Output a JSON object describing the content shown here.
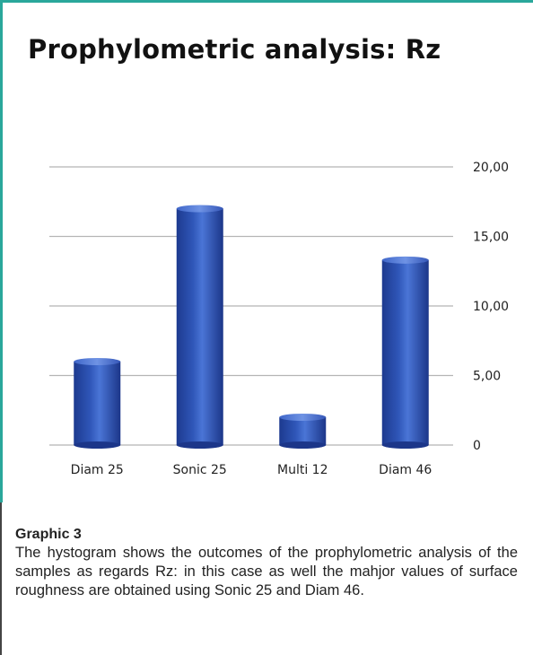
{
  "chart_data": {
    "type": "bar",
    "title": "Prophylometric analysis: Rz",
    "categories": [
      "Diam 25",
      "Sonic 25",
      "Multi 12",
      "Diam 46"
    ],
    "values": [
      6.0,
      17.0,
      2.0,
      13.3
    ],
    "ylim": [
      0,
      20
    ],
    "yticks": [
      "0",
      "5,00",
      "10,00",
      "15,00",
      "20,00"
    ],
    "ytick_values": [
      0,
      5,
      10,
      15,
      20
    ],
    "y_axis_side": "right",
    "grid": true,
    "legend": "none",
    "bar_color": "#2f56b8"
  },
  "caption": {
    "heading": "Graphic 3",
    "text": "The hystogram shows the outcomes of the prophylometric analysis of the samples as regards Rz: in this case as well the mahjor values of surface roughness are obtained using Sonic 25 and Diam 46."
  },
  "colors": {
    "frame_accent": "#2aa79b",
    "gridline": "#b5b5b5"
  }
}
